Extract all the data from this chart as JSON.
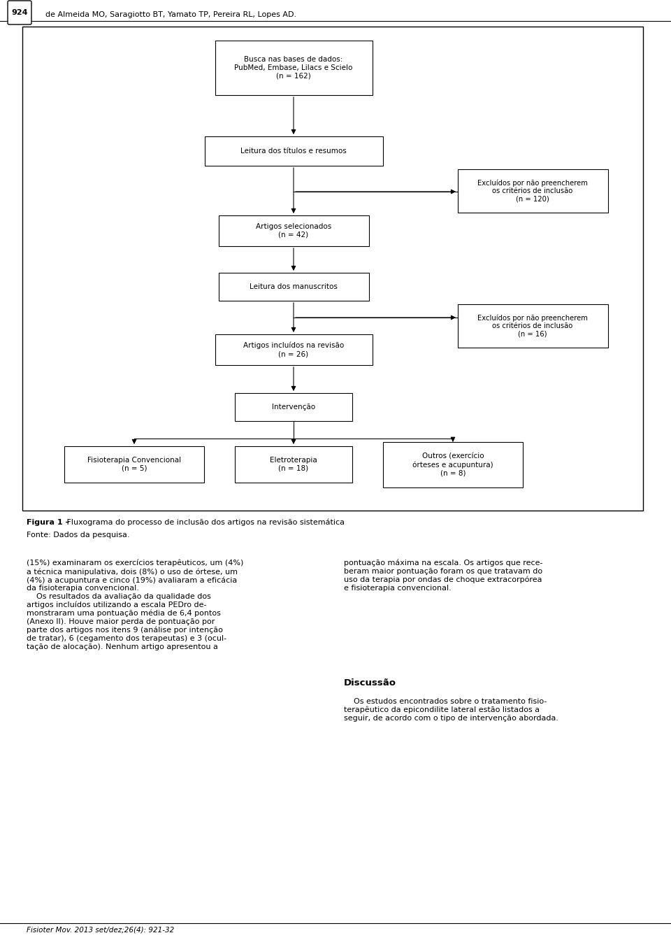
{
  "header_text": "de Almeida MO, Saragiotto BT, Yamato TP, Pereira RL, Lopes AD.",
  "page_num": "924",
  "figure_caption_bold": "Figura 1 –",
  "figure_caption_normal": " Fluxograma do processo de inclusão dos artigos na revisão sistemática",
  "figure_source": "Fonte: Dados da pesquisa.",
  "footer_text": "Fisioter Mov. 2013 set/dez;26(4): 921-32",
  "body_text_left": "(15%) examinaram os exercícios terapêuticos, um (4%)\na técnica manipulativa, dois (8%) o uso de órtese, um\n(4%) a acupuntura e cinco (19%) avaliaram a eficácia\nda fisioterapia convencional.\n    Os resultados da avaliação da qualidade dos\nartigos incluídos utilizando a escala PEDro de-\nmonstraram uma pontuação média de 6,4 pontos\n(Anexo II). Houve maior perda de pontuação por\nparte dos artigos nos itens 9 (análise por intenção\nde tratar), 6 (cegamento dos terapeutas) e 3 (ocul-\ntação de alocação). Nenhum artigo apresentou a",
  "body_text_right": "pontuação máxima na escala. Os artigos que rece-\nberam maior pontuação foram os que tratavam do\nuso da terapia por ondas de choque extracorpórea\ne fisioterapia convencional.",
  "discussion_title": "Discussão",
  "discussion_text": "    Os estudos encontrados sobre o tratamento fisio-\nterapêutico da epicondilite lateral estão listados a\nseguir, de acordo com o tipo de intervenção abordada."
}
